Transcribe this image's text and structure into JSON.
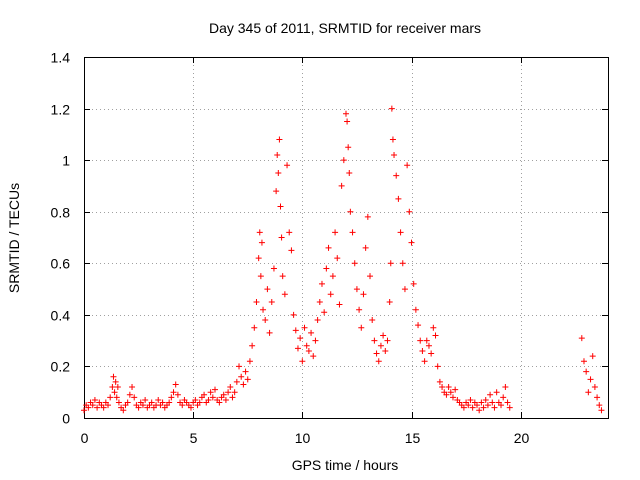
{
  "chart_data": {
    "type": "scatter",
    "title": "Day 345 of 2011, SRMTID for receiver mars",
    "xlabel": "GPS time / hours",
    "ylabel": "SRMTID / TECUs",
    "xlim": [
      0,
      24
    ],
    "ylim": [
      0,
      1.4
    ],
    "xticks": [
      0,
      5,
      10,
      15,
      20
    ],
    "xtick_labels": [
      "0",
      "5",
      "10",
      "15",
      "20"
    ],
    "yticks": [
      0,
      0.2,
      0.4,
      0.6,
      0.8,
      1.0,
      1.2,
      1.4
    ],
    "ytick_labels": [
      "0",
      "0.2",
      "0.4",
      "0.6",
      "0.8",
      "1",
      "1.2",
      "1.4"
    ],
    "grid": true,
    "marker": "+",
    "color": "#ff0000",
    "series": [
      {
        "name": "SRMTID",
        "x": [
          0.0,
          0.1,
          0.2,
          0.3,
          0.4,
          0.5,
          0.6,
          0.7,
          0.8,
          0.9,
          1.0,
          1.1,
          1.2,
          1.3,
          1.35,
          1.4,
          1.45,
          1.5,
          1.55,
          1.6,
          1.7,
          1.8,
          1.9,
          2.0,
          2.1,
          2.2,
          2.3,
          2.4,
          2.5,
          2.6,
          2.7,
          2.8,
          2.9,
          3.0,
          3.1,
          3.2,
          3.3,
          3.4,
          3.5,
          3.6,
          3.7,
          3.8,
          3.9,
          4.0,
          4.1,
          4.2,
          4.3,
          4.4,
          4.5,
          4.6,
          4.7,
          4.8,
          4.9,
          5.0,
          5.1,
          5.2,
          5.3,
          5.4,
          5.5,
          5.6,
          5.7,
          5.8,
          5.9,
          6.0,
          6.1,
          6.2,
          6.3,
          6.4,
          6.5,
          6.6,
          6.7,
          6.8,
          6.9,
          7.0,
          7.1,
          7.2,
          7.3,
          7.4,
          7.5,
          7.6,
          7.7,
          7.8,
          7.9,
          8.0,
          8.05,
          8.1,
          8.15,
          8.2,
          8.3,
          8.4,
          8.5,
          8.6,
          8.7,
          8.8,
          8.85,
          8.9,
          8.95,
          9.0,
          9.05,
          9.1,
          9.2,
          9.3,
          9.4,
          9.5,
          9.6,
          9.7,
          9.8,
          9.9,
          10.0,
          10.1,
          10.2,
          10.3,
          10.4,
          10.5,
          10.6,
          10.7,
          10.8,
          10.9,
          11.0,
          11.1,
          11.2,
          11.3,
          11.4,
          11.5,
          11.6,
          11.7,
          11.8,
          11.9,
          12.0,
          12.05,
          12.1,
          12.15,
          12.2,
          12.3,
          12.4,
          12.5,
          12.6,
          12.7,
          12.8,
          12.9,
          13.0,
          13.1,
          13.2,
          13.3,
          13.4,
          13.5,
          13.6,
          13.7,
          13.8,
          13.9,
          14.0,
          14.05,
          14.1,
          14.15,
          14.2,
          14.3,
          14.4,
          14.5,
          14.6,
          14.7,
          14.8,
          14.9,
          15.0,
          15.1,
          15.2,
          15.3,
          15.4,
          15.5,
          15.6,
          15.7,
          15.8,
          15.9,
          16.0,
          16.1,
          16.2,
          16.3,
          16.4,
          16.5,
          16.6,
          16.7,
          16.8,
          16.9,
          17.0,
          17.1,
          17.2,
          17.3,
          17.4,
          17.5,
          17.6,
          17.7,
          17.8,
          17.9,
          18.0,
          18.1,
          18.2,
          18.3,
          18.4,
          18.5,
          18.6,
          18.7,
          18.8,
          18.9,
          19.0,
          19.1,
          19.2,
          19.3,
          19.4,
          19.5,
          22.8,
          22.9,
          23.0,
          23.1,
          23.2,
          23.3,
          23.4,
          23.5,
          23.6,
          23.7
        ],
        "y": [
          0.03,
          0.05,
          0.04,
          0.06,
          0.05,
          0.07,
          0.04,
          0.06,
          0.05,
          0.04,
          0.06,
          0.05,
          0.08,
          0.12,
          0.16,
          0.1,
          0.14,
          0.08,
          0.12,
          0.06,
          0.04,
          0.03,
          0.05,
          0.06,
          0.09,
          0.12,
          0.08,
          0.05,
          0.04,
          0.06,
          0.05,
          0.07,
          0.04,
          0.05,
          0.06,
          0.04,
          0.05,
          0.07,
          0.05,
          0.06,
          0.04,
          0.05,
          0.06,
          0.08,
          0.1,
          0.13,
          0.09,
          0.06,
          0.05,
          0.07,
          0.06,
          0.05,
          0.04,
          0.06,
          0.07,
          0.05,
          0.06,
          0.08,
          0.09,
          0.06,
          0.07,
          0.1,
          0.08,
          0.11,
          0.07,
          0.06,
          0.08,
          0.09,
          0.07,
          0.1,
          0.12,
          0.08,
          0.1,
          0.14,
          0.2,
          0.16,
          0.13,
          0.18,
          0.15,
          0.22,
          0.28,
          0.35,
          0.45,
          0.62,
          0.72,
          0.55,
          0.68,
          0.42,
          0.38,
          0.5,
          0.33,
          0.45,
          0.58,
          0.88,
          1.02,
          0.95,
          1.08,
          0.82,
          0.7,
          0.55,
          0.48,
          0.98,
          0.72,
          0.65,
          0.4,
          0.34,
          0.27,
          0.31,
          0.22,
          0.35,
          0.28,
          0.26,
          0.33,
          0.24,
          0.3,
          0.38,
          0.45,
          0.52,
          0.41,
          0.58,
          0.66,
          0.48,
          0.55,
          0.72,
          0.62,
          0.44,
          0.9,
          1.0,
          1.18,
          1.15,
          1.05,
          0.95,
          0.8,
          0.72,
          0.6,
          0.5,
          0.42,
          0.35,
          0.48,
          0.66,
          0.78,
          0.55,
          0.38,
          0.3,
          0.25,
          0.22,
          0.28,
          0.32,
          0.26,
          0.3,
          0.45,
          0.6,
          1.2,
          1.08,
          1.02,
          0.94,
          0.85,
          0.72,
          0.6,
          0.5,
          0.98,
          0.8,
          0.68,
          0.52,
          0.42,
          0.36,
          0.3,
          0.26,
          0.22,
          0.3,
          0.28,
          0.25,
          0.35,
          0.32,
          0.2,
          0.14,
          0.12,
          0.1,
          0.09,
          0.12,
          0.1,
          0.08,
          0.11,
          0.07,
          0.06,
          0.05,
          0.04,
          0.06,
          0.05,
          0.07,
          0.04,
          0.06,
          0.05,
          0.03,
          0.06,
          0.04,
          0.07,
          0.05,
          0.09,
          0.06,
          0.04,
          0.1,
          0.06,
          0.05,
          0.08,
          0.12,
          0.06,
          0.04,
          0.31,
          0.22,
          0.18,
          0.1,
          0.15,
          0.24,
          0.12,
          0.08,
          0.05,
          0.03
        ]
      }
    ]
  }
}
